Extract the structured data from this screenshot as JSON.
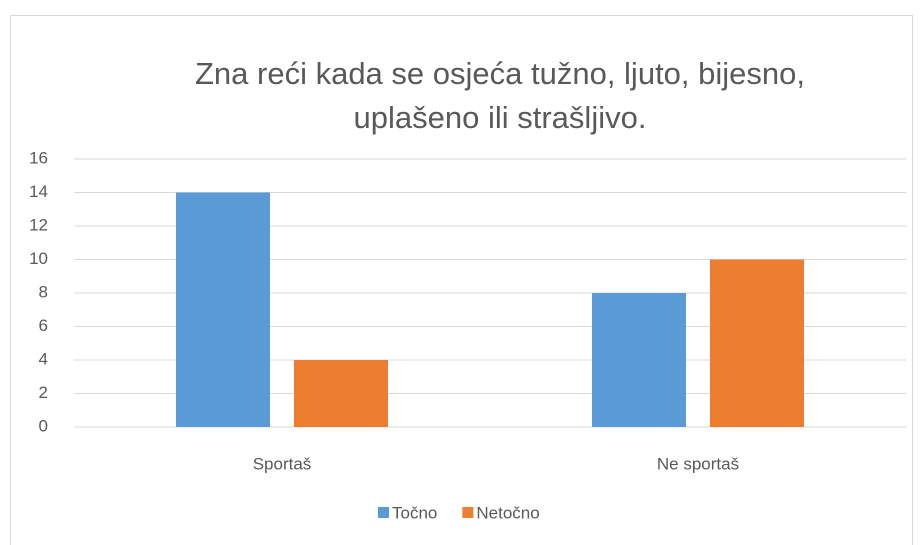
{
  "chart_data": {
    "type": "bar",
    "title": "Zna reći kada se osjeća tužno, ljuto, bijesno, uplašeno ili strašljivo.",
    "categories": [
      "Sportaš",
      "Ne sportaš"
    ],
    "series": [
      {
        "name": "Točno",
        "color": "#5b9bd5",
        "values": [
          14,
          8
        ]
      },
      {
        "name": "Netočno",
        "color": "#ed7d31",
        "values": [
          4,
          10
        ]
      }
    ],
    "ylim": [
      0,
      16
    ],
    "yticks": [
      0,
      2,
      4,
      6,
      8,
      10,
      12,
      14,
      16
    ],
    "grid": true,
    "legend": "bottom"
  }
}
